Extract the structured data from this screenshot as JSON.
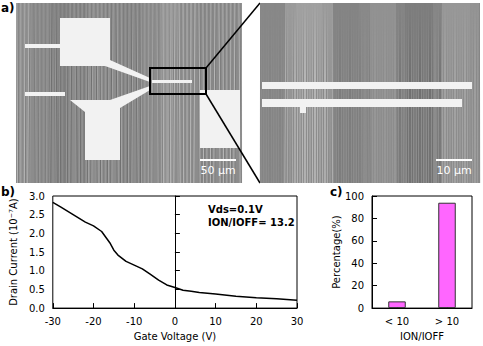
{
  "micrographs": {
    "label": "a)",
    "scale_bars": [
      "50 μm",
      "10 μm"
    ]
  },
  "chart_data": [
    {
      "label": "b)",
      "type": "line",
      "x_label": "Gate Voltage (V)",
      "y_label": "Drain Current (10⁻⁷A)",
      "annotations": [
        "Vds=0.1V",
        "ION/IOFF= 13.2"
      ],
      "x": [
        -30,
        -28,
        -25,
        -22,
        -20,
        -18,
        -16,
        -15,
        -14,
        -12,
        -10,
        -8,
        -6,
        -4,
        -2,
        0,
        2,
        4,
        6,
        10,
        15,
        20,
        25,
        30
      ],
      "values": [
        2.83,
        2.7,
        2.5,
        2.3,
        2.2,
        2.05,
        1.75,
        1.55,
        1.42,
        1.25,
        1.15,
        1.05,
        0.9,
        0.75,
        0.62,
        0.55,
        0.48,
        0.45,
        0.42,
        0.38,
        0.32,
        0.28,
        0.25,
        0.21
      ],
      "color": "#000000",
      "xlim": [
        -30,
        30
      ],
      "xticks": [
        -30,
        -20,
        -10,
        0,
        10,
        20,
        30
      ],
      "ylim": [
        0,
        3
      ],
      "yticks": [
        {
          "value": 0,
          "label": "0.0"
        },
        {
          "value": 0.5,
          "label": "0.5"
        },
        {
          "value": 1,
          "label": "1.0"
        },
        {
          "value": 1.5,
          "label": "1.5"
        },
        {
          "value": 2,
          "label": "2.0"
        },
        {
          "value": 2.5,
          "label": "2.5"
        },
        {
          "value": 3,
          "label": "3.0"
        }
      ],
      "grid": false
    },
    {
      "label": "c)",
      "type": "bar",
      "x_label": "ION/IOFF",
      "y_label": "Percentage(%)",
      "categories": [
        "< 10",
        "> 10"
      ],
      "values": [
        6,
        94
      ],
      "color": "#ff66ff",
      "ylim": [
        0,
        100
      ],
      "yticks": [
        0,
        20,
        40,
        60,
        80,
        100
      ],
      "grid": false
    }
  ]
}
